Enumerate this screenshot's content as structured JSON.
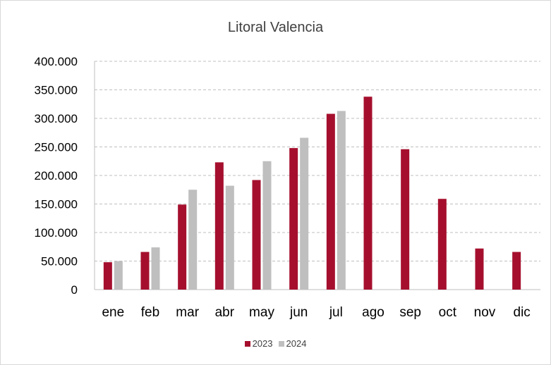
{
  "chart_data": {
    "type": "bar",
    "title": "Litoral  Valencia",
    "xlabel": "",
    "ylabel": "",
    "categories": [
      "ene",
      "feb",
      "mar",
      "abr",
      "may",
      "jun",
      "jul",
      "ago",
      "sep",
      "oct",
      "nov",
      "dic"
    ],
    "series": [
      {
        "name": "2023",
        "color": "#a50f2d",
        "values": [
          48000,
          66000,
          149000,
          223000,
          192000,
          248000,
          308000,
          338000,
          246000,
          159000,
          72000,
          66000
        ]
      },
      {
        "name": "2024",
        "color": "#bfbfbf",
        "values": [
          50000,
          74000,
          175000,
          182000,
          225000,
          266000,
          313000,
          null,
          null,
          null,
          null,
          null
        ]
      }
    ],
    "ylim": [
      0,
      400000
    ],
    "yticks": [
      0,
      50000,
      100000,
      150000,
      200000,
      250000,
      300000,
      350000,
      400000
    ],
    "ytick_labels": [
      "0",
      "50.000",
      "100.000",
      "150.000",
      "200.000",
      "250.000",
      "300.000",
      "350.000",
      "400.000"
    ],
    "grid": true,
    "legend_position": "bottom"
  }
}
